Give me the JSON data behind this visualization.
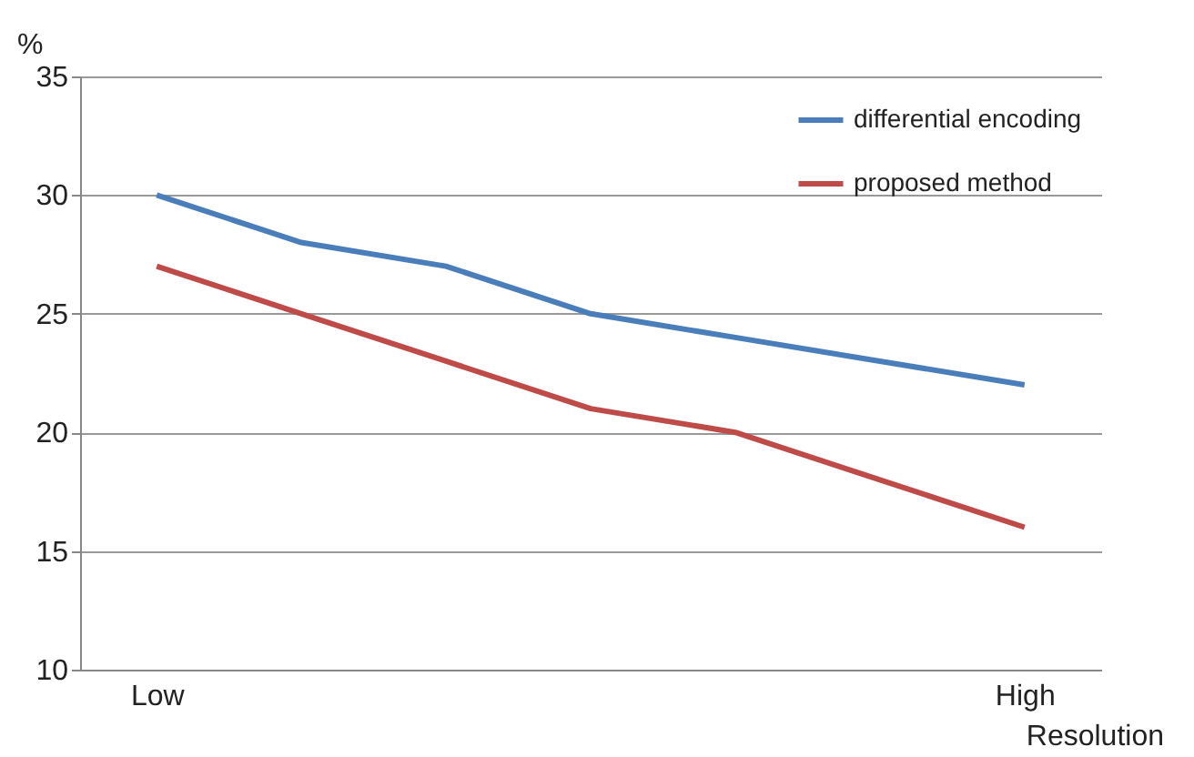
{
  "chart_data": {
    "type": "line",
    "xlabel": "Resolution",
    "ylabel": "%",
    "categories": [
      "Low",
      null,
      null,
      null,
      null,
      null,
      "High"
    ],
    "series": [
      {
        "name": "differential encoding",
        "color": "#4a7ebb",
        "values": [
          30,
          28,
          27,
          25,
          24,
          23,
          22
        ]
      },
      {
        "name": "proposed method",
        "color": "#be4b48",
        "values": [
          27,
          25,
          23,
          21,
          20,
          18,
          16
        ]
      }
    ],
    "ylim": [
      10,
      35
    ],
    "yticks": [
      10,
      15,
      20,
      25,
      30,
      35
    ],
    "grid": "y",
    "legend": "top right",
    "marker": "none",
    "line_style": "solid"
  }
}
